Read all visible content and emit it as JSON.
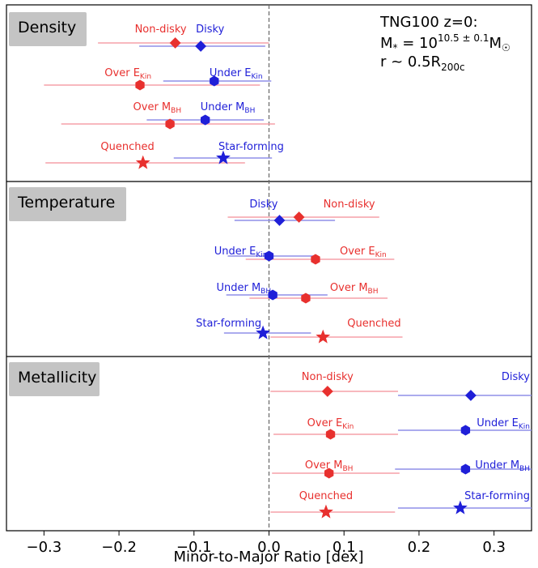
{
  "chart_data": {
    "type": "scatter",
    "xlabel": "Minor-to-Major Ratio [dex]",
    "xlim": [
      -0.35,
      0.35
    ],
    "xticks": [
      "−0.3",
      "−0.2",
      "−0.1",
      "0.0",
      "0.1",
      "0.2",
      "0.3"
    ],
    "xtick_values": [
      -0.3,
      -0.2,
      -0.1,
      0.0,
      0.1,
      0.2,
      0.3
    ],
    "reference_line_x": 0.0,
    "annotation": {
      "line1": "TNG100 z=0:",
      "line2": "M* = 10^(10.5 ± 0.1) M☉",
      "line3": "r ~ 0.5R200c"
    },
    "colors": {
      "red": "#e8302e",
      "blue": "#1f1fd8",
      "red_err": "#f5a0a8",
      "blue_err": "#8f8fe8"
    },
    "panels": [
      {
        "title": "Density",
        "rows": [
          {
            "marker": "diamond",
            "red": {
              "label": "Non-disky",
              "x": -0.125,
              "lo": -0.228,
              "hi": 0.0
            },
            "blue": {
              "label": "Disky",
              "x": -0.091,
              "lo": -0.173,
              "hi": -0.005
            }
          },
          {
            "marker": "hexagon",
            "red": {
              "label": "Over E",
              "sub": "Kin",
              "x": -0.172,
              "lo": -0.3,
              "hi": -0.012
            },
            "blue": {
              "label": "Under E",
              "sub": "Kin",
              "x": -0.073,
              "lo": -0.141,
              "hi": 0.003
            }
          },
          {
            "marker": "hexagon",
            "red": {
              "label": "Over M",
              "sub": "BH",
              "x": -0.132,
              "lo": -0.277,
              "hi": 0.008
            },
            "blue": {
              "label": "Under M",
              "sub": "BH",
              "x": -0.085,
              "lo": -0.163,
              "hi": -0.007
            }
          },
          {
            "marker": "star",
            "red": {
              "label": "Quenched",
              "x": -0.168,
              "lo": -0.298,
              "hi": -0.032
            },
            "blue": {
              "label": "Star-forming",
              "x": -0.061,
              "lo": -0.127,
              "hi": 0.004
            }
          }
        ]
      },
      {
        "title": "Temperature",
        "rows": [
          {
            "marker": "diamond",
            "red": {
              "label": "Non-disky",
              "x": 0.04,
              "lo": -0.055,
              "hi": 0.147
            },
            "blue": {
              "label": "Disky",
              "x": 0.014,
              "lo": -0.046,
              "hi": 0.088
            }
          },
          {
            "marker": "hexagon",
            "red": {
              "label": "Over E",
              "sub": "Kin",
              "x": 0.062,
              "lo": -0.031,
              "hi": 0.167
            },
            "blue": {
              "label": "Under E",
              "sub": "Kin",
              "x": 0.0,
              "lo": -0.055,
              "hi": 0.062
            }
          },
          {
            "marker": "hexagon",
            "red": {
              "label": "Over M",
              "sub": "BH",
              "x": 0.049,
              "lo": -0.026,
              "hi": 0.158
            },
            "blue": {
              "label": "Under M",
              "sub": "BH",
              "x": 0.005,
              "lo": -0.057,
              "hi": 0.078
            }
          },
          {
            "marker": "star",
            "red": {
              "label": "Quenched",
              "x": 0.072,
              "lo": 0.002,
              "hi": 0.178
            },
            "blue": {
              "label": "Star-forming",
              "x": -0.008,
              "lo": -0.06,
              "hi": 0.056
            }
          }
        ]
      },
      {
        "title": "Metallicity",
        "rows": [
          {
            "marker": "diamond",
            "red": {
              "label": "Non-disky",
              "x": 0.078,
              "lo": 0.002,
              "hi": 0.172
            },
            "blue": {
              "label": "Disky",
              "x": 0.269,
              "lo": 0.172,
              "hi": 0.35
            }
          },
          {
            "marker": "hexagon",
            "red": {
              "label": "Over E",
              "sub": "Kin",
              "x": 0.082,
              "lo": 0.006,
              "hi": 0.172
            },
            "blue": {
              "label": "Under E",
              "sub": "Kin",
              "x": 0.262,
              "lo": 0.172,
              "hi": 0.35
            }
          },
          {
            "marker": "hexagon",
            "red": {
              "label": "Over M",
              "sub": "BH",
              "x": 0.08,
              "lo": 0.004,
              "hi": 0.174
            },
            "blue": {
              "label": "Under M",
              "sub": "BH",
              "x": 0.262,
              "lo": 0.168,
              "hi": 0.35
            }
          },
          {
            "marker": "star",
            "red": {
              "label": "Quenched",
              "x": 0.076,
              "lo": 0.002,
              "hi": 0.168
            },
            "blue": {
              "label": "Star-forming",
              "x": 0.255,
              "lo": 0.172,
              "hi": 0.35
            }
          }
        ]
      }
    ]
  }
}
